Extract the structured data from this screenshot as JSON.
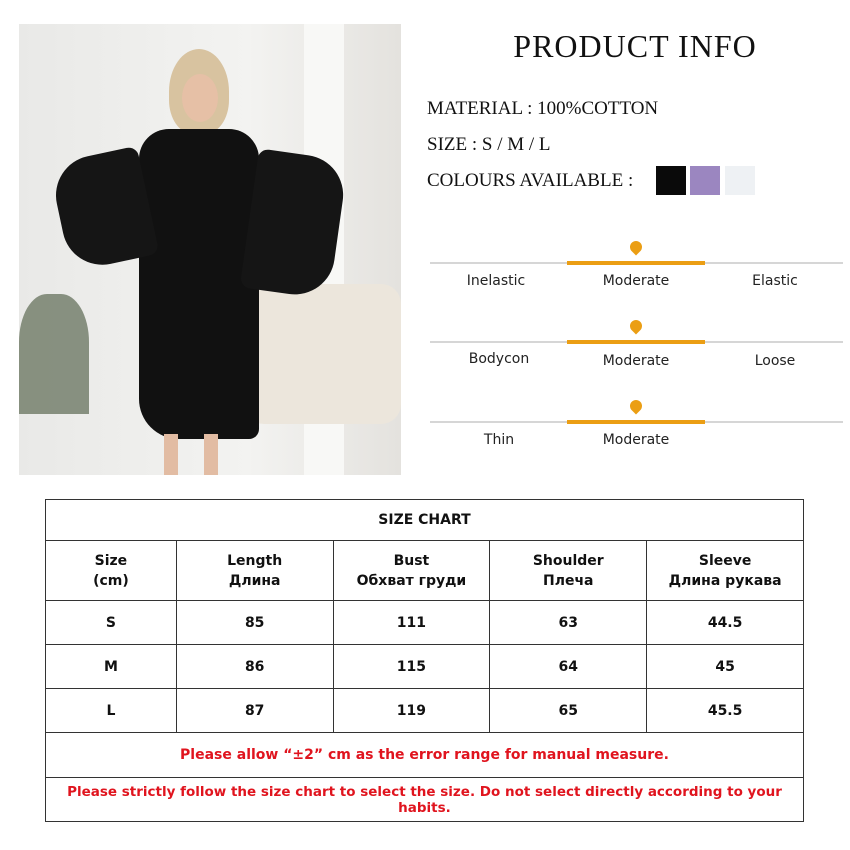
{
  "header": {
    "title": "PRODUCT INFO"
  },
  "specs": {
    "material": "MATERIAL : 100%COTTON",
    "size": "SIZE : S / M / L",
    "colours_label": "COLOURS AVAILABLE :",
    "colours": [
      "#0a0a0a",
      "#9b86c0",
      "#eef1f4"
    ]
  },
  "accent_color": "#eb9e14",
  "scales": [
    {
      "left": "Inelastic",
      "middle": "Moderate",
      "right": "Elastic",
      "selected": "Moderate"
    },
    {
      "left": "Bodycon",
      "middle": "Moderate",
      "right": "Loose",
      "selected": "Moderate"
    },
    {
      "left": "Thin",
      "middle": "Moderate",
      "right": "",
      "selected": "Moderate"
    }
  ],
  "size_chart": {
    "title": "SIZE CHART",
    "headers": [
      {
        "en": "Size",
        "ru": "(cm)"
      },
      {
        "en": "Length",
        "ru": "Длина"
      },
      {
        "en": "Bust",
        "ru": "Обхват груди"
      },
      {
        "en": "Shoulder",
        "ru": "Плеча"
      },
      {
        "en": "Sleeve",
        "ru": "Длина рукава"
      }
    ],
    "rows": [
      [
        "S",
        "85",
        "111",
        "63",
        "44.5"
      ],
      [
        "M",
        "86",
        "115",
        "64",
        "45"
      ],
      [
        "L",
        "87",
        "119",
        "65",
        "45.5"
      ]
    ],
    "note1": "Please allow “±2” cm as the error range for manual measure.",
    "note2": "Please strictly follow the size chart  to select the size. Do not select directly according to your habits."
  }
}
